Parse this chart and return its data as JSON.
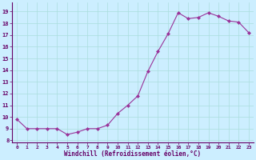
{
  "x": [
    0,
    1,
    2,
    3,
    4,
    5,
    6,
    7,
    8,
    9,
    10,
    11,
    12,
    13,
    14,
    15,
    16,
    17,
    18,
    19,
    20,
    21,
    22,
    23
  ],
  "y": [
    9.8,
    9.0,
    9.0,
    9.0,
    9.0,
    8.5,
    8.7,
    9.0,
    9.0,
    9.3,
    10.3,
    11.0,
    11.8,
    13.9,
    15.6,
    17.1,
    18.9,
    18.4,
    18.5,
    18.9,
    18.6,
    18.2,
    18.1,
    17.2
  ],
  "line_color": "#993399",
  "marker": "D",
  "marker_color": "#993399",
  "bg_color": "#cceeff",
  "grid_color": "#aadddd",
  "axis_color": "#660066",
  "tick_color": "#660066",
  "xlabel": "Windchill (Refroidissement éolien,°C)",
  "ylabel_ticks": [
    8,
    9,
    10,
    11,
    12,
    13,
    14,
    15,
    16,
    17,
    18,
    19
  ],
  "xlim": [
    -0.5,
    23.5
  ],
  "ylim": [
    7.8,
    19.8
  ]
}
